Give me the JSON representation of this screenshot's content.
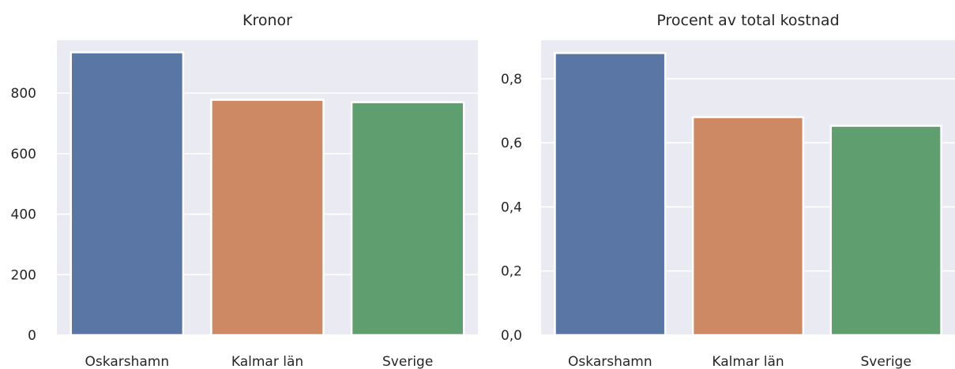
{
  "chart_data": [
    {
      "type": "bar",
      "title": "Kronor",
      "xlabel": "",
      "ylabel": "",
      "categories": [
        "Oskarshamn",
        "Kalmar län",
        "Sverige"
      ],
      "values": [
        935,
        778,
        770
      ],
      "colors": [
        "#5a76a5",
        "#cd8963",
        "#5f9e6e"
      ],
      "ylim": [
        0,
        975
      ],
      "yticks": [
        0,
        200,
        400,
        600,
        800
      ],
      "ytick_labels": [
        "0",
        "200",
        "400",
        "600",
        "800"
      ],
      "grid": true,
      "background": "#eaeaf2"
    },
    {
      "type": "bar",
      "title": "Procent av total kostnad",
      "xlabel": "",
      "ylabel": "",
      "categories": [
        "Oskarshamn",
        "Kalmar län",
        "Sverige"
      ],
      "values": [
        0.88,
        0.68,
        0.653
      ],
      "colors": [
        "#5a76a5",
        "#cd8963",
        "#5f9e6e"
      ],
      "ylim": [
        0,
        0.92
      ],
      "yticks": [
        0,
        0.2,
        0.4,
        0.6,
        0.8
      ],
      "ytick_labels": [
        "0,0",
        "0,2",
        "0,4",
        "0,6",
        "0,8"
      ],
      "grid": true,
      "background": "#eaeaf2"
    }
  ]
}
